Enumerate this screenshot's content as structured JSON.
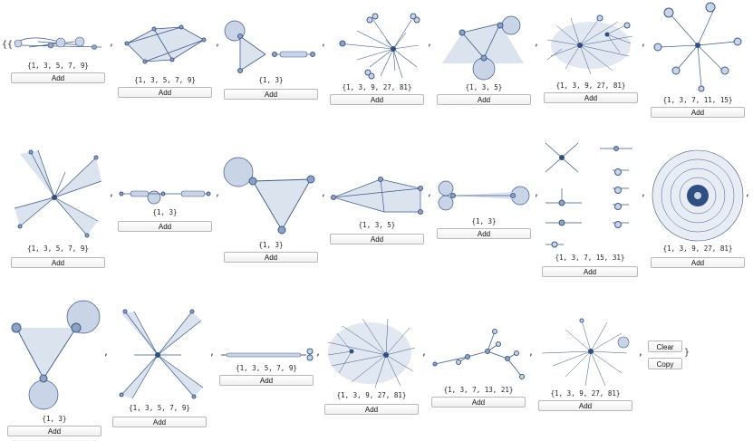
{
  "outer_open": "{{",
  "outer_close": "}",
  "separator": ",",
  "add_label": "Add",
  "clear_label": "Clear",
  "copy_label": "Copy",
  "colors": {
    "node": "#8ea3c4",
    "node_stroke": "#3f5a86",
    "edge": "#3d5a88",
    "fill": "#c9d4e6",
    "hub": "#2f4f82"
  },
  "graphs": [
    {
      "caption": "{1, 3, 5, 7, 9}"
    },
    {
      "caption": "{1, 3, 5, 7, 9}"
    },
    {
      "caption": "{1, 3}"
    },
    {
      "caption": "{1, 3, 9, 27, 81}"
    },
    {
      "caption": "{1, 3, 5}"
    },
    {
      "caption": "{1, 3, 9, 27, 81}"
    },
    {
      "caption": "{1, 3, 7, 11, 15}"
    },
    {
      "caption": "{1, 3, 5, 7, 9}"
    },
    {
      "caption": "{1, 3}"
    },
    {
      "caption": "{1, 3}"
    },
    {
      "caption": "{1, 3, 5}"
    },
    {
      "caption": "{1, 3}"
    },
    {
      "caption": "{1, 3, 7, 15, 31}"
    },
    {
      "caption": "{1, 3, 9, 27, 81}"
    },
    {
      "caption": "{1, 3}"
    },
    {
      "caption": "{1, 3, 5, 7, 9}"
    },
    {
      "caption": "{1, 3, 5, 7, 9}"
    },
    {
      "caption": "{1, 3, 9, 27, 81}"
    },
    {
      "caption": "{1, 3, 7, 13, 21}"
    },
    {
      "caption": "{1, 3, 9, 27, 81}"
    }
  ]
}
